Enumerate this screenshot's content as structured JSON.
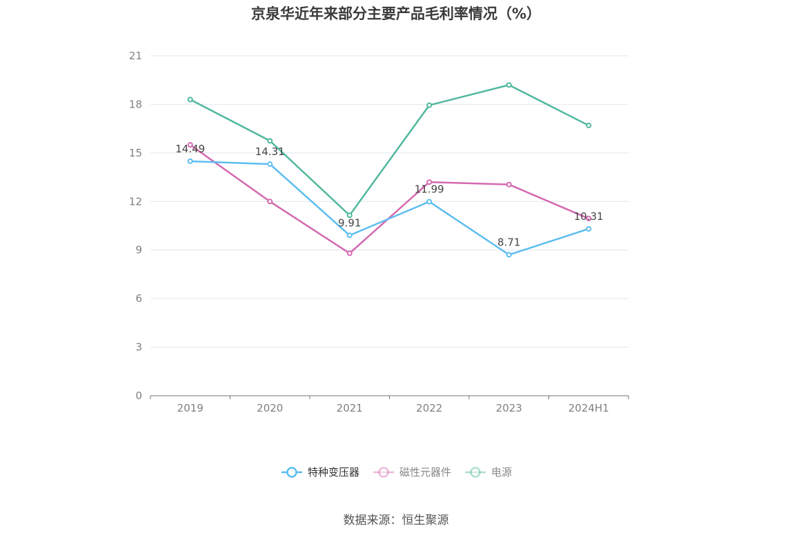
{
  "chart_data": {
    "type": "line",
    "title": "京泉华近年来部分主要产品毛利率情况（%）",
    "categories": [
      "2019",
      "2020",
      "2021",
      "2022",
      "2023",
      "2024H1"
    ],
    "ylim": [
      0,
      21
    ],
    "yticks": [
      0,
      3,
      6,
      9,
      12,
      15,
      18,
      21
    ],
    "grid": true,
    "legend_position": "bottom",
    "series": [
      {
        "name": "特种变压器",
        "color": "#5bbdf0",
        "values": [
          14.49,
          14.31,
          9.91,
          11.99,
          8.71,
          10.31
        ],
        "labels": [
          "14.49",
          "14.31",
          "9.91",
          "11.99",
          "8.71",
          "10.31"
        ]
      },
      {
        "name": "磁性元器件",
        "color": "#d468b0",
        "values": [
          15.5,
          12.0,
          8.8,
          13.2,
          13.05,
          10.95
        ]
      },
      {
        "name": "电源",
        "color": "#4fb89d",
        "values": [
          18.3,
          15.75,
          11.15,
          17.95,
          19.2,
          16.7
        ]
      }
    ]
  },
  "source": "数据来源：恒生聚源"
}
